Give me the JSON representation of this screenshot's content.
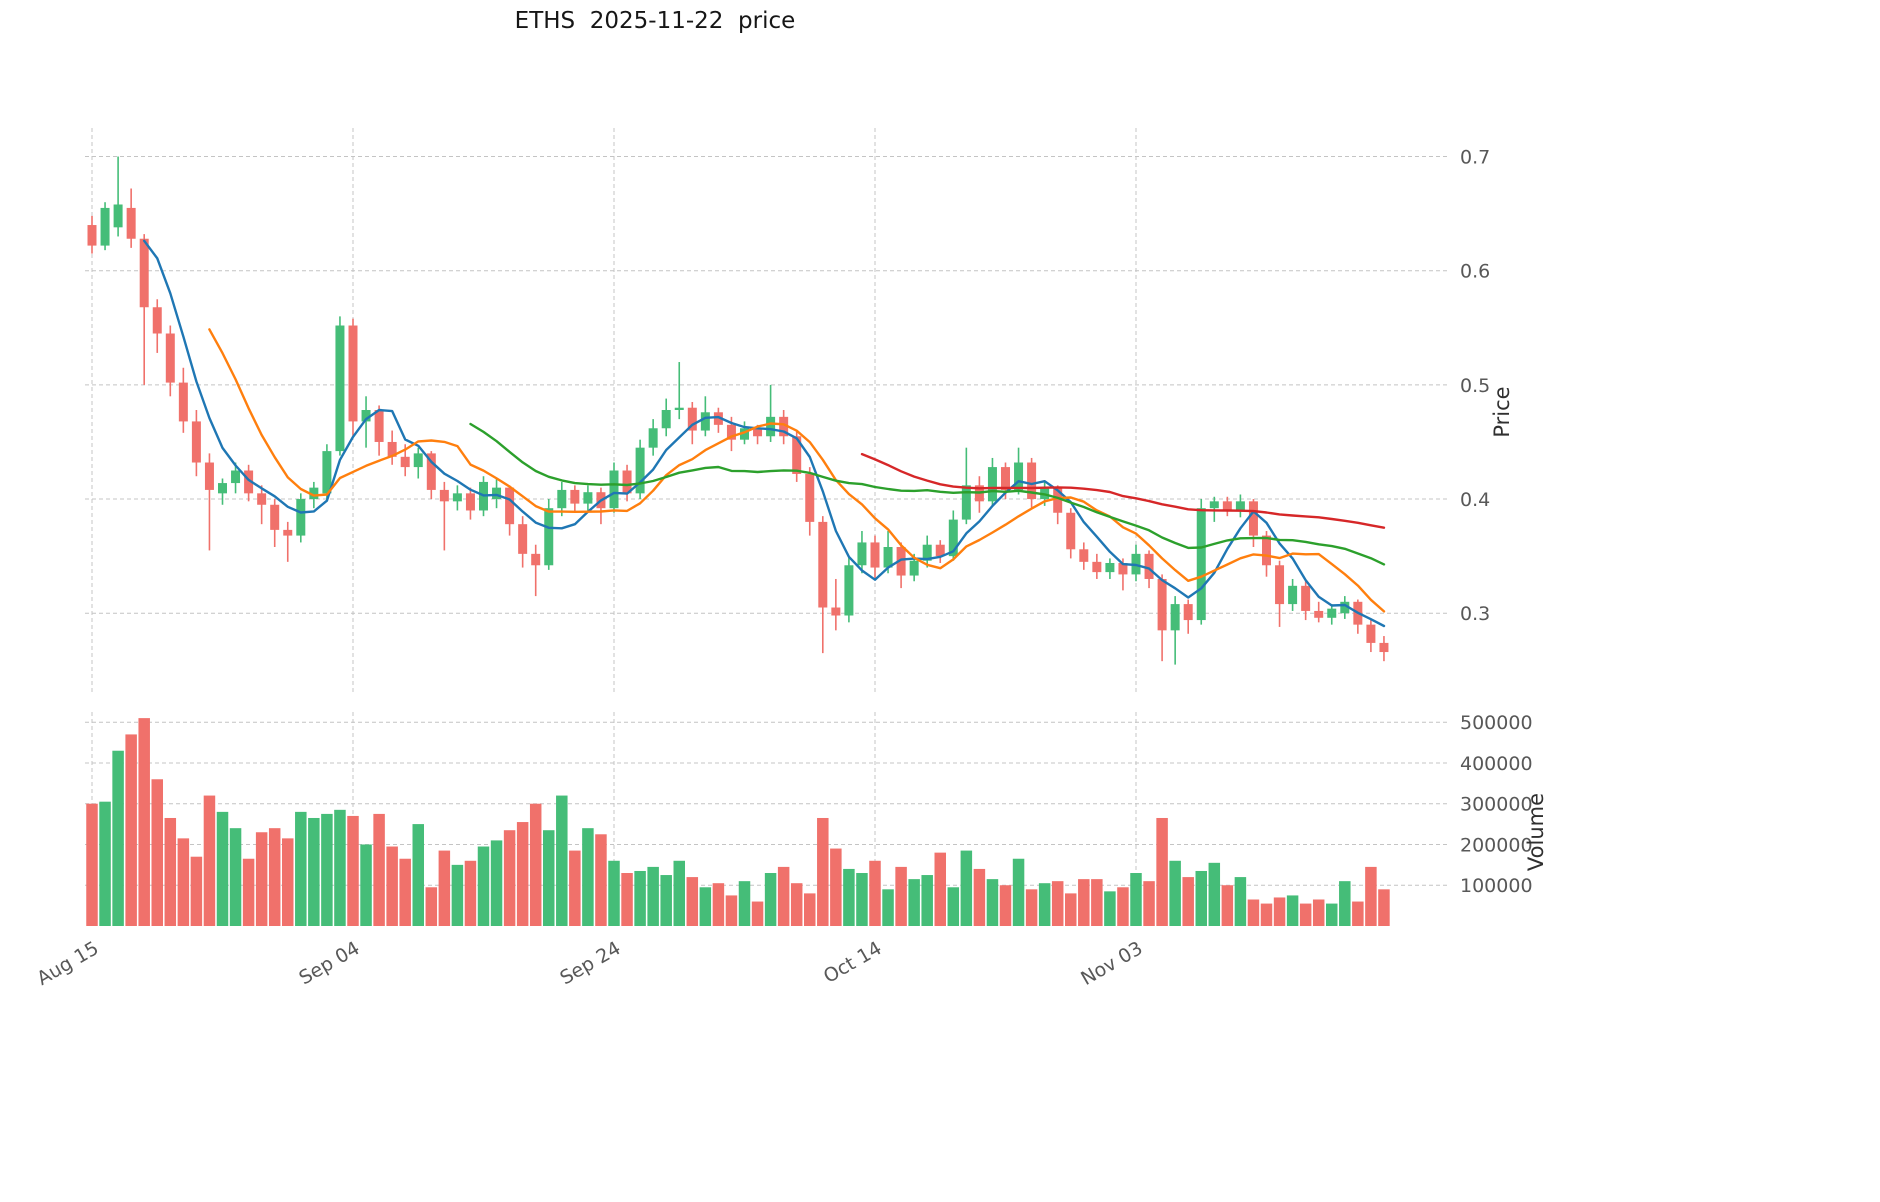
{
  "title": "ETHS  2025-11-22  price",
  "axes": {
    "price_label": "Price",
    "volume_label": "Volume"
  },
  "chart_data": {
    "type": "candlestick",
    "title": "ETHS  2025-11-22  price",
    "symbol": "ETHS",
    "as_of_date": "2025-11-22",
    "grid": true,
    "grid_color": "#c4c4c4",
    "up_color": "#45bd78",
    "down_color": "#f0716b",
    "ma_colors_note": "matplotlib default cycle",
    "moving_averages": [
      {
        "window": 5,
        "color": "#1f77b4"
      },
      {
        "window": 10,
        "color": "#ff7f0e"
      },
      {
        "window": 30,
        "color": "#2ca02c"
      },
      {
        "window": 60,
        "color": "#d62728"
      }
    ],
    "price_ylim": [
      0.231,
      0.725
    ],
    "price_yticks": [
      0.3,
      0.4,
      0.5,
      0.6,
      0.7
    ],
    "volume_ylim": [
      0,
      525000
    ],
    "volume_yticks": [
      100000,
      200000,
      300000,
      400000,
      500000
    ],
    "xtick_labels": [
      "Aug 15",
      "Sep 04",
      "Sep 24",
      "Oct 14",
      "Nov 03"
    ],
    "xtick_indices": [
      0,
      20,
      40,
      60,
      80
    ],
    "dates": [
      "2025-08-15",
      "2025-08-16",
      "2025-08-17",
      "2025-08-18",
      "2025-08-19",
      "2025-08-20",
      "2025-08-21",
      "2025-08-22",
      "2025-08-23",
      "2025-08-24",
      "2025-08-25",
      "2025-08-26",
      "2025-08-27",
      "2025-08-28",
      "2025-08-29",
      "2025-08-30",
      "2025-08-31",
      "2025-09-01",
      "2025-09-02",
      "2025-09-03",
      "2025-09-04",
      "2025-09-05",
      "2025-09-06",
      "2025-09-07",
      "2025-09-08",
      "2025-09-09",
      "2025-09-10",
      "2025-09-11",
      "2025-09-12",
      "2025-09-13",
      "2025-09-14",
      "2025-09-15",
      "2025-09-16",
      "2025-09-17",
      "2025-09-18",
      "2025-09-19",
      "2025-09-20",
      "2025-09-21",
      "2025-09-22",
      "2025-09-23",
      "2025-09-24",
      "2025-09-25",
      "2025-09-26",
      "2025-09-27",
      "2025-09-28",
      "2025-09-29",
      "2025-09-30",
      "2025-10-01",
      "2025-10-02",
      "2025-10-03",
      "2025-10-04",
      "2025-10-05",
      "2025-10-06",
      "2025-10-07",
      "2025-10-08",
      "2025-10-09",
      "2025-10-10",
      "2025-10-11",
      "2025-10-12",
      "2025-10-13",
      "2025-10-14",
      "2025-10-15",
      "2025-10-16",
      "2025-10-17",
      "2025-10-18",
      "2025-10-19",
      "2025-10-20",
      "2025-10-21",
      "2025-10-22",
      "2025-10-23",
      "2025-10-24",
      "2025-10-25",
      "2025-10-26",
      "2025-10-27",
      "2025-10-28",
      "2025-10-29",
      "2025-10-30",
      "2025-10-31",
      "2025-11-01",
      "2025-11-02",
      "2025-11-03",
      "2025-11-04",
      "2025-11-05",
      "2025-11-06",
      "2025-11-07",
      "2025-11-08",
      "2025-11-09",
      "2025-11-10",
      "2025-11-11",
      "2025-11-12",
      "2025-11-13",
      "2025-11-14",
      "2025-11-15",
      "2025-11-16",
      "2025-11-17",
      "2025-11-18",
      "2025-11-19",
      "2025-11-20",
      "2025-11-21",
      "2025-11-22"
    ],
    "open": [
      0.64,
      0.622,
      0.638,
      0.655,
      0.628,
      0.568,
      0.545,
      0.502,
      0.468,
      0.432,
      0.405,
      0.414,
      0.425,
      0.405,
      0.395,
      0.373,
      0.368,
      0.4,
      0.405,
      0.442,
      0.552,
      0.468,
      0.478,
      0.45,
      0.437,
      0.428,
      0.44,
      0.408,
      0.398,
      0.405,
      0.39,
      0.4,
      0.41,
      0.378,
      0.352,
      0.342,
      0.392,
      0.408,
      0.396,
      0.406,
      0.392,
      0.425,
      0.405,
      0.445,
      0.462,
      0.478,
      0.48,
      0.46,
      0.476,
      0.465,
      0.452,
      0.462,
      0.455,
      0.472,
      0.455,
      0.422,
      0.38,
      0.305,
      0.298,
      0.342,
      0.362,
      0.34,
      0.358,
      0.333,
      0.346,
      0.36,
      0.35,
      0.382,
      0.412,
      0.398,
      0.428,
      0.408,
      0.432,
      0.4,
      0.41,
      0.388,
      0.356,
      0.345,
      0.336,
      0.344,
      0.334,
      0.352,
      0.33,
      0.285,
      0.308,
      0.294,
      0.392,
      0.398,
      0.39,
      0.398,
      0.368,
      0.342,
      0.308,
      0.324,
      0.302,
      0.296,
      0.3,
      0.31,
      0.29,
      0.274
    ],
    "high": [
      0.648,
      0.66,
      0.7,
      0.672,
      0.632,
      0.575,
      0.552,
      0.515,
      0.478,
      0.44,
      0.418,
      0.432,
      0.43,
      0.412,
      0.4,
      0.38,
      0.405,
      0.415,
      0.448,
      0.56,
      0.558,
      0.49,
      0.482,
      0.46,
      0.448,
      0.445,
      0.442,
      0.415,
      0.412,
      0.41,
      0.42,
      0.418,
      0.412,
      0.385,
      0.36,
      0.4,
      0.415,
      0.412,
      0.412,
      0.41,
      0.432,
      0.43,
      0.452,
      0.47,
      0.488,
      0.52,
      0.485,
      0.49,
      0.48,
      0.472,
      0.468,
      0.465,
      0.5,
      0.478,
      0.46,
      0.428,
      0.385,
      0.33,
      0.35,
      0.372,
      0.368,
      0.372,
      0.362,
      0.352,
      0.368,
      0.364,
      0.39,
      0.445,
      0.42,
      0.436,
      0.432,
      0.445,
      0.436,
      0.415,
      0.412,
      0.392,
      0.362,
      0.352,
      0.348,
      0.348,
      0.36,
      0.355,
      0.334,
      0.315,
      0.312,
      0.4,
      0.402,
      0.402,
      0.404,
      0.4,
      0.372,
      0.346,
      0.33,
      0.328,
      0.31,
      0.308,
      0.315,
      0.312,
      0.294,
      0.28
    ],
    "low": [
      0.615,
      0.618,
      0.63,
      0.62,
      0.5,
      0.528,
      0.49,
      0.458,
      0.42,
      0.355,
      0.395,
      0.405,
      0.398,
      0.378,
      0.358,
      0.345,
      0.362,
      0.392,
      0.398,
      0.438,
      0.455,
      0.445,
      0.438,
      0.43,
      0.42,
      0.418,
      0.4,
      0.355,
      0.39,
      0.382,
      0.385,
      0.392,
      0.368,
      0.34,
      0.315,
      0.338,
      0.385,
      0.388,
      0.39,
      0.378,
      0.388,
      0.398,
      0.4,
      0.438,
      0.455,
      0.47,
      0.448,
      0.455,
      0.458,
      0.442,
      0.448,
      0.448,
      0.45,
      0.448,
      0.415,
      0.368,
      0.265,
      0.285,
      0.292,
      0.335,
      0.33,
      0.335,
      0.322,
      0.328,
      0.34,
      0.344,
      0.346,
      0.378,
      0.388,
      0.394,
      0.4,
      0.404,
      0.392,
      0.394,
      0.378,
      0.348,
      0.338,
      0.33,
      0.33,
      0.32,
      0.328,
      0.322,
      0.258,
      0.255,
      0.282,
      0.29,
      0.38,
      0.385,
      0.384,
      0.358,
      0.332,
      0.288,
      0.302,
      0.294,
      0.292,
      0.29,
      0.295,
      0.282,
      0.266,
      0.258
    ],
    "close": [
      0.622,
      0.655,
      0.658,
      0.628,
      0.568,
      0.545,
      0.502,
      0.468,
      0.432,
      0.408,
      0.414,
      0.425,
      0.405,
      0.395,
      0.373,
      0.368,
      0.4,
      0.41,
      0.442,
      0.552,
      0.468,
      0.478,
      0.45,
      0.437,
      0.428,
      0.44,
      0.408,
      0.398,
      0.405,
      0.39,
      0.415,
      0.41,
      0.378,
      0.352,
      0.342,
      0.392,
      0.408,
      0.396,
      0.406,
      0.392,
      0.425,
      0.405,
      0.445,
      0.462,
      0.478,
      0.48,
      0.46,
      0.476,
      0.465,
      0.452,
      0.462,
      0.455,
      0.472,
      0.455,
      0.422,
      0.38,
      0.305,
      0.298,
      0.342,
      0.362,
      0.34,
      0.358,
      0.333,
      0.346,
      0.36,
      0.35,
      0.382,
      0.412,
      0.398,
      0.428,
      0.408,
      0.432,
      0.4,
      0.41,
      0.388,
      0.356,
      0.345,
      0.336,
      0.344,
      0.334,
      0.352,
      0.33,
      0.285,
      0.308,
      0.294,
      0.392,
      0.398,
      0.39,
      0.398,
      0.368,
      0.342,
      0.308,
      0.324,
      0.302,
      0.296,
      0.304,
      0.31,
      0.29,
      0.274,
      0.266
    ],
    "volume": [
      300000,
      305000,
      430000,
      470000,
      510000,
      360000,
      265000,
      215000,
      170000,
      320000,
      280000,
      240000,
      165000,
      230000,
      240000,
      215000,
      280000,
      265000,
      275000,
      285000,
      270000,
      200000,
      275000,
      195000,
      165000,
      250000,
      95000,
      185000,
      150000,
      160000,
      195000,
      210000,
      235000,
      255000,
      300000,
      235000,
      320000,
      185000,
      240000,
      225000,
      160000,
      130000,
      135000,
      145000,
      125000,
      160000,
      120000,
      95000,
      105000,
      75000,
      110000,
      60000,
      130000,
      145000,
      105000,
      80000,
      265000,
      190000,
      140000,
      130000,
      160000,
      90000,
      145000,
      115000,
      125000,
      180000,
      95000,
      185000,
      140000,
      115000,
      100000,
      165000,
      90000,
      105000,
      110000,
      80000,
      115000,
      115000,
      85000,
      95000,
      130000,
      110000,
      265000,
      160000,
      120000,
      135000,
      155000,
      100000,
      120000,
      65000,
      55000,
      70000,
      75000,
      55000,
      65000,
      55000,
      110000,
      60000,
      145000,
      90000
    ]
  }
}
